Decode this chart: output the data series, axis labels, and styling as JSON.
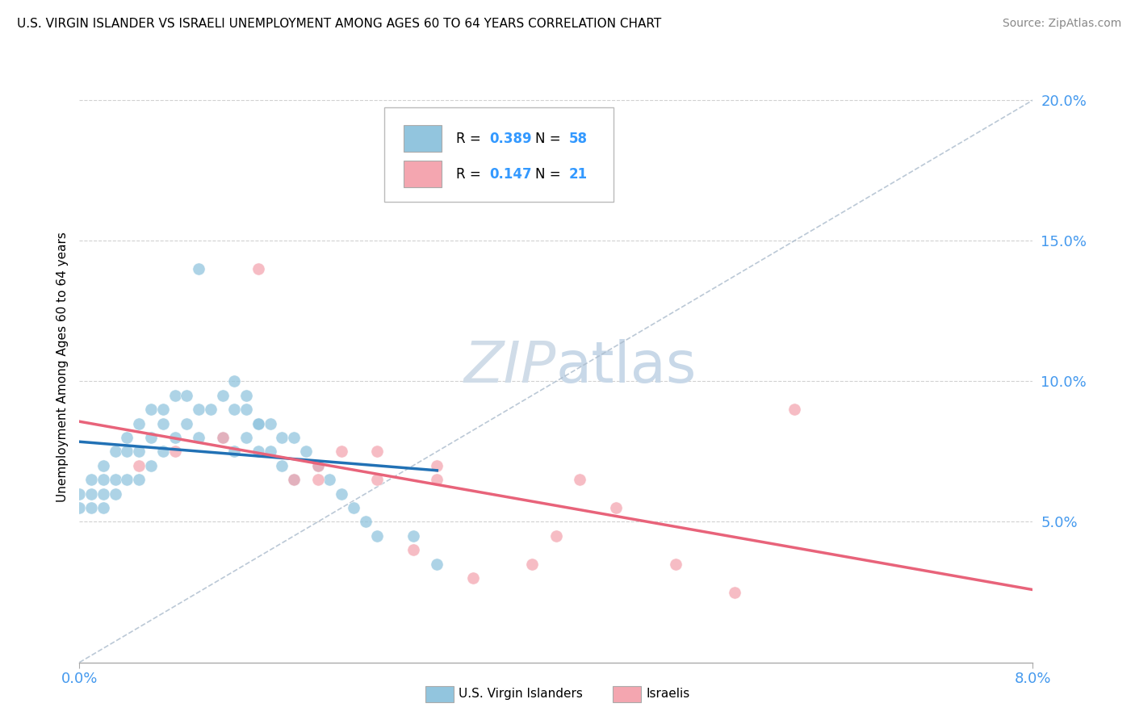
{
  "title": "U.S. VIRGIN ISLANDER VS ISRAELI UNEMPLOYMENT AMONG AGES 60 TO 64 YEARS CORRELATION CHART",
  "source": "Source: ZipAtlas.com",
  "xlim": [
    0.0,
    0.08
  ],
  "ylim": [
    0.0,
    0.21
  ],
  "label1": "U.S. Virgin Islanders",
  "label2": "Israelis",
  "color1": "#92C5DE",
  "color2": "#F4A6B0",
  "trendline1_color": "#2171B5",
  "trendline2_color": "#E8637A",
  "watermark_color": "#D0DCE8",
  "blue_scatter_x": [
    0.0,
    0.0,
    0.001,
    0.001,
    0.001,
    0.002,
    0.002,
    0.002,
    0.002,
    0.003,
    0.003,
    0.003,
    0.004,
    0.004,
    0.004,
    0.005,
    0.005,
    0.005,
    0.006,
    0.006,
    0.006,
    0.007,
    0.007,
    0.007,
    0.008,
    0.008,
    0.009,
    0.009,
    0.01,
    0.01,
    0.011,
    0.012,
    0.012,
    0.013,
    0.013,
    0.014,
    0.014,
    0.015,
    0.015,
    0.016,
    0.016,
    0.017,
    0.017,
    0.018,
    0.018,
    0.019,
    0.02,
    0.021,
    0.022,
    0.023,
    0.024,
    0.025,
    0.028,
    0.03,
    0.013,
    0.014,
    0.015,
    0.01
  ],
  "blue_scatter_y": [
    0.06,
    0.055,
    0.065,
    0.06,
    0.055,
    0.07,
    0.065,
    0.06,
    0.055,
    0.075,
    0.065,
    0.06,
    0.08,
    0.075,
    0.065,
    0.085,
    0.075,
    0.065,
    0.09,
    0.08,
    0.07,
    0.09,
    0.085,
    0.075,
    0.095,
    0.08,
    0.095,
    0.085,
    0.09,
    0.08,
    0.09,
    0.095,
    0.08,
    0.09,
    0.075,
    0.09,
    0.08,
    0.085,
    0.075,
    0.085,
    0.075,
    0.08,
    0.07,
    0.08,
    0.065,
    0.075,
    0.07,
    0.065,
    0.06,
    0.055,
    0.05,
    0.045,
    0.045,
    0.035,
    0.1,
    0.095,
    0.085,
    0.14
  ],
  "pink_scatter_x": [
    0.005,
    0.008,
    0.012,
    0.015,
    0.018,
    0.02,
    0.022,
    0.025,
    0.028,
    0.03,
    0.033,
    0.038,
    0.042,
    0.045,
    0.05,
    0.055,
    0.06,
    0.03,
    0.02,
    0.025,
    0.04
  ],
  "pink_scatter_y": [
    0.07,
    0.075,
    0.08,
    0.14,
    0.065,
    0.07,
    0.075,
    0.065,
    0.04,
    0.065,
    0.03,
    0.035,
    0.065,
    0.055,
    0.035,
    0.025,
    0.09,
    0.07,
    0.065,
    0.075,
    0.045
  ],
  "ytick_positions": [
    0.05,
    0.1,
    0.15,
    0.2
  ],
  "ytick_labels": [
    "5.0%",
    "10.0%",
    "15.0%",
    "20.0%"
  ],
  "xtick_positions": [
    0.0,
    0.08
  ],
  "xtick_labels": [
    "0.0%",
    "8.0%"
  ]
}
